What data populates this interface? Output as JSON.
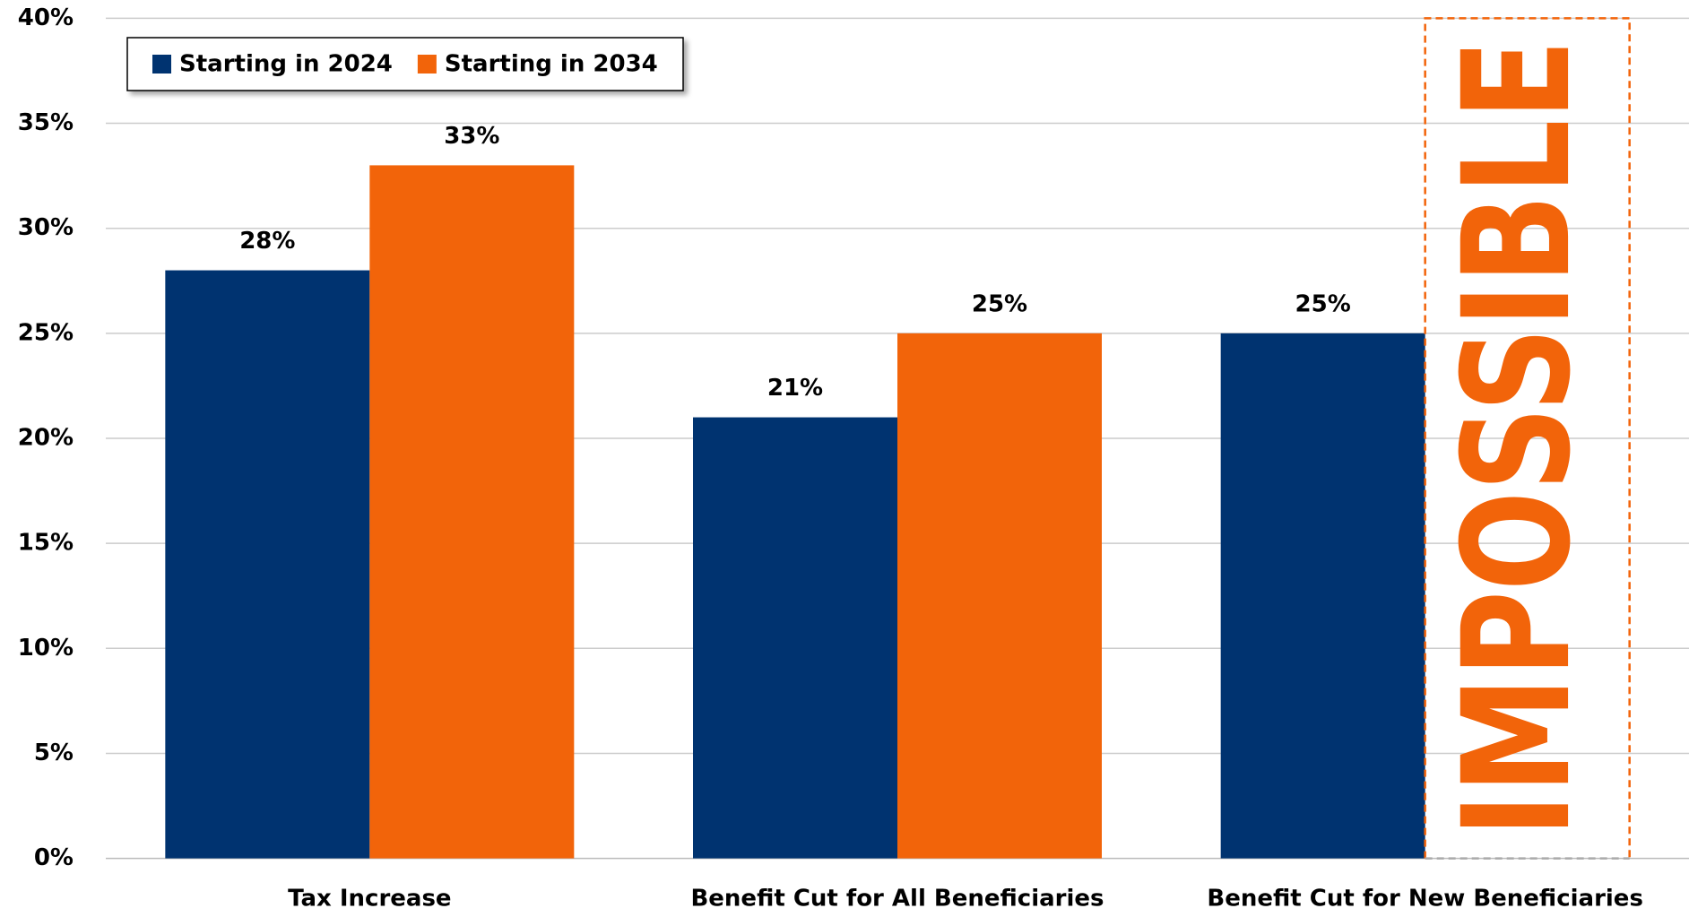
{
  "chart_data": {
    "type": "bar",
    "categories": [
      "Tax Increase",
      "Benefit Cut for All Beneficiaries",
      "Benefit Cut for New Beneficiaries"
    ],
    "series": [
      {
        "name": "Starting in 2024",
        "color": "#003370",
        "values": [
          28,
          21,
          25
        ],
        "value_labels": [
          "28%",
          "21%",
          "25%"
        ]
      },
      {
        "name": "Starting in 2034",
        "color": "#f2640a",
        "values": [
          33,
          25,
          null
        ],
        "value_labels": [
          "33%",
          "25%",
          null
        ]
      }
    ],
    "ylim": [
      0,
      40
    ],
    "yticks": [
      {
        "value": 0,
        "label": "0%"
      },
      {
        "value": 5,
        "label": "5%"
      },
      {
        "value": 10,
        "label": "10%"
      },
      {
        "value": 15,
        "label": "15%"
      },
      {
        "value": 20,
        "label": "20%"
      },
      {
        "value": 25,
        "label": "25%"
      },
      {
        "value": 30,
        "label": "30%"
      },
      {
        "value": 35,
        "label": "35%"
      },
      {
        "value": 40,
        "label": "40%"
      }
    ],
    "grid": true,
    "legend": "top-left",
    "annotation": "IMPOSSIBLE",
    "annotation_color": "#f2640a"
  }
}
